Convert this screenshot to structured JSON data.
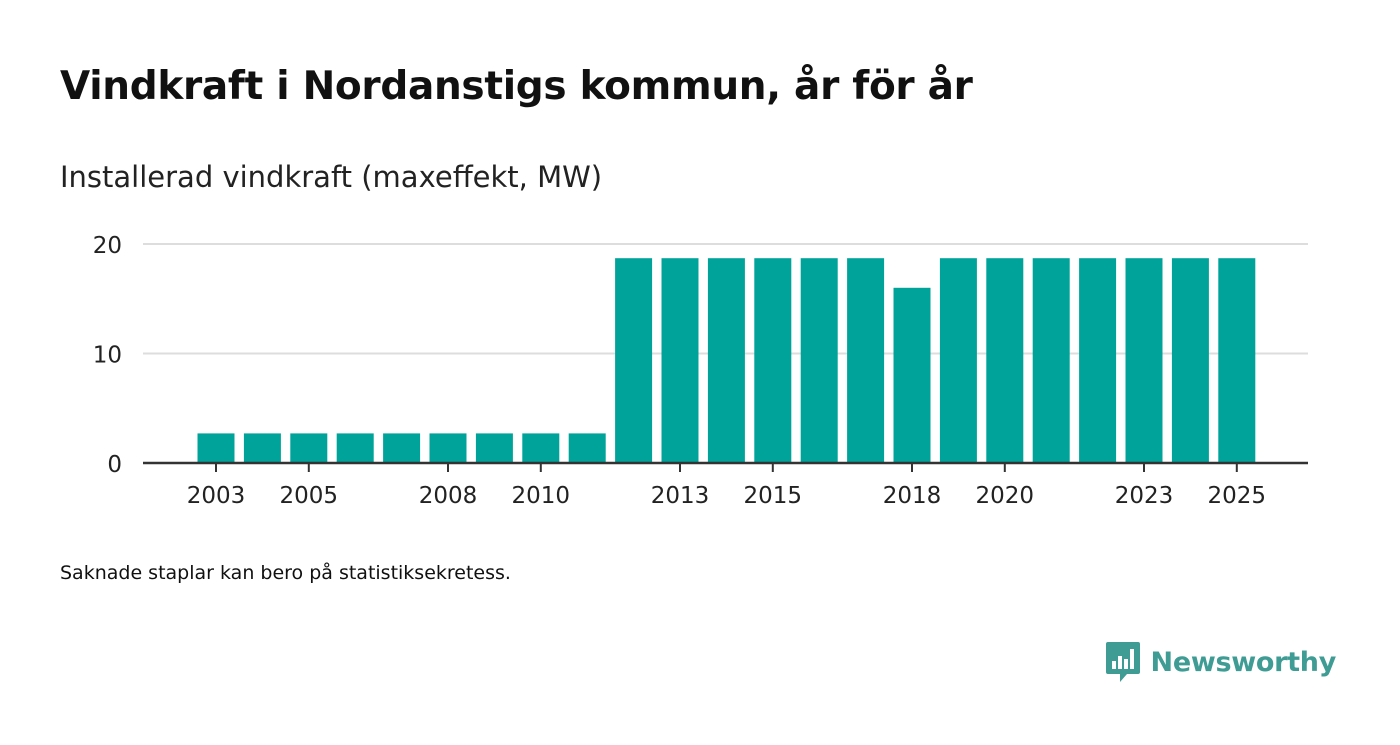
{
  "header": {
    "title": "Vindkraft i Nordanstigs kommun, år för år",
    "subtitle": "Installerad vindkraft (maxeffekt, MW)"
  },
  "footer": {
    "note": "Saknade staplar kan bero på statistiksekretess.",
    "brand": "Newsworthy"
  },
  "colors": {
    "bar": "#00a39a",
    "grid": "#dddddd",
    "axis": "#333333",
    "brand": "#3e9c94"
  },
  "chart_data": {
    "type": "bar",
    "title": "Installerad vindkraft (maxeffekt, MW)",
    "xlabel": "",
    "ylabel": "",
    "categories": [
      "2003",
      "2004",
      "2005",
      "2006",
      "2007",
      "2008",
      "2009",
      "2010",
      "2011",
      "2012",
      "2013",
      "2014",
      "2015",
      "2016",
      "2017",
      "2018",
      "2019",
      "2020",
      "2021",
      "2022",
      "2023",
      "2024",
      "2025"
    ],
    "values": [
      2.7,
      2.7,
      2.7,
      2.7,
      2.7,
      2.7,
      2.7,
      2.7,
      2.7,
      18.7,
      18.7,
      18.7,
      18.7,
      18.7,
      18.7,
      16.0,
      18.7,
      18.7,
      18.7,
      18.7,
      18.7,
      18.7,
      18.7
    ],
    "x_tick_labels": [
      "2003",
      "2005",
      "2008",
      "2010",
      "2013",
      "2015",
      "2018",
      "2020",
      "2023",
      "2025"
    ],
    "y_ticks": [
      0,
      10,
      20
    ],
    "ylim": [
      0,
      20
    ],
    "grid": true,
    "legend": "none"
  }
}
